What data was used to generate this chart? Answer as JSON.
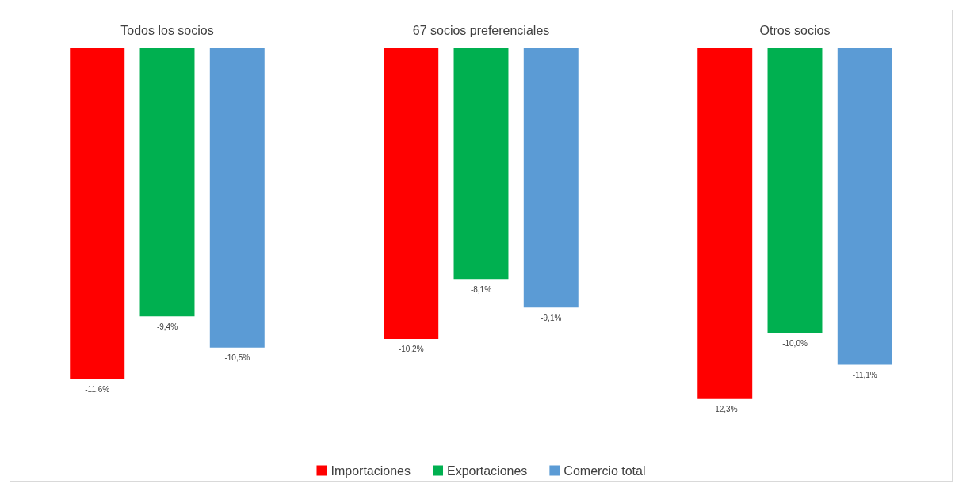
{
  "chart_data": {
    "type": "bar",
    "categories": [
      "Todos los socios",
      "67 socios preferenciales",
      "Otros socios"
    ],
    "series": [
      {
        "name": "Importaciones",
        "color": "#ff0000",
        "values": [
          -11.6,
          -10.2,
          -12.3
        ],
        "value_labels": [
          "-11,6%",
          "-10,2%",
          "-12,3%"
        ]
      },
      {
        "name": "Exportaciones",
        "color": "#00b050",
        "values": [
          -9.4,
          -8.1,
          -10.0
        ],
        "value_labels": [
          "-9,4%",
          "-8,1%",
          "-10,0%"
        ]
      },
      {
        "name": "Comercio total",
        "color": "#5b9bd5",
        "values": [
          -10.5,
          -9.1,
          -11.1
        ],
        "value_labels": [
          "-10,5%",
          "-9,1%",
          "-11,1%"
        ]
      }
    ],
    "grid": false,
    "legend": "bottom"
  }
}
